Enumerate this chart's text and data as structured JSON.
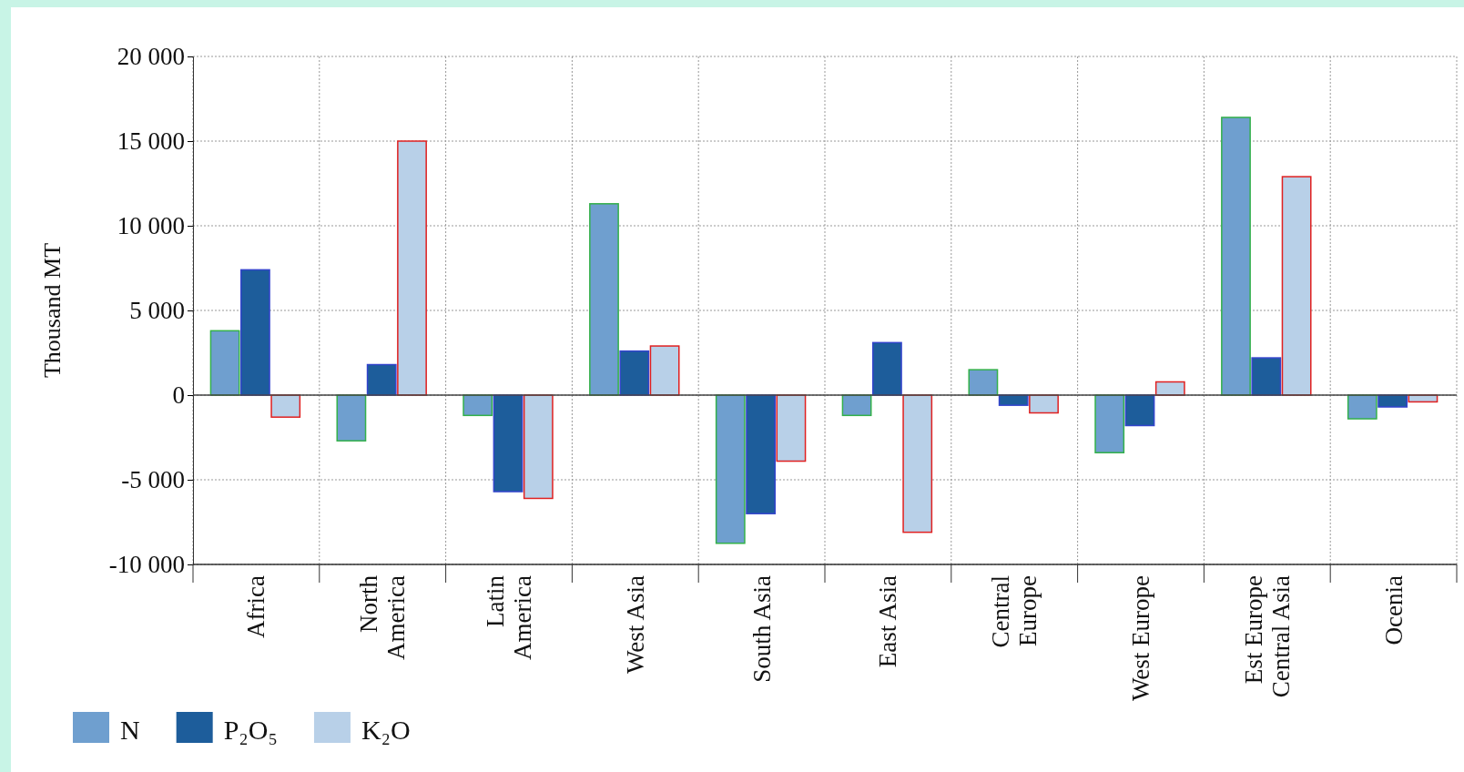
{
  "chart_data": {
    "type": "bar",
    "ylabel": "Thousand MT",
    "categories": [
      "Africa",
      "North\nAmerica",
      "Latin\nAmerica",
      "West Asia",
      "South Asia",
      "East Asia",
      "Central\nEurope",
      "West Europe",
      "Est Europe\nCentral Asia",
      "Ocenia"
    ],
    "series": [
      {
        "name": "N",
        "color": "#6f9fcf",
        "values": [
          3800,
          -2700,
          -1200,
          11300,
          -8750,
          -1200,
          1500,
          -3400,
          16400,
          -1400
        ]
      },
      {
        "name": "P₂O₅",
        "color": "#1d5d9b",
        "values": [
          7400,
          1800,
          -5700,
          2600,
          -7000,
          3100,
          -600,
          -1800,
          2200,
          -700
        ]
      },
      {
        "name": "K₂O",
        "color": "#b8d0e8",
        "values": [
          -1300,
          15000,
          -6100,
          2900,
          -3900,
          -8100,
          -1050,
          780,
          12900,
          -400
        ]
      }
    ],
    "ylim": [
      -10000,
      20000
    ],
    "yticks": [
      {
        "value": -10000,
        "label": "-10 000"
      },
      {
        "value": -5000,
        "label": "-5 000"
      },
      {
        "value": 0,
        "label": "0"
      },
      {
        "value": 5000,
        "label": "5 000"
      },
      {
        "value": 10000,
        "label": "10 000"
      },
      {
        "value": 15000,
        "label": "15 000"
      },
      {
        "value": 20000,
        "label": "20 000"
      }
    ],
    "grid": true,
    "legend": "bottom left"
  }
}
